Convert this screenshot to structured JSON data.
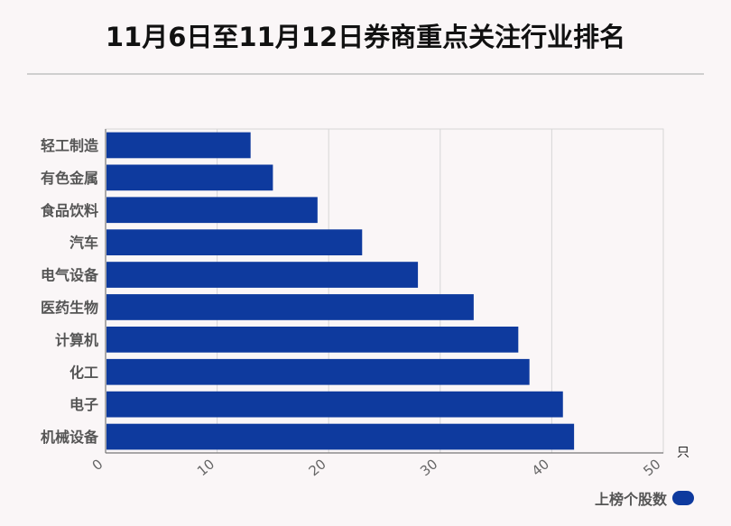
{
  "title": "11月6日至11月12日券商重点关注行业排名",
  "legend": {
    "label": "上榜个股数",
    "color": "#0e3a9e"
  },
  "chart_data": {
    "type": "bar",
    "orientation": "horizontal",
    "title": "11月6日至11月12日券商重点关注行业排名",
    "categories": [
      "轻工制造",
      "有色金属",
      "食品饮料",
      "汽车",
      "电气设备",
      "医药生物",
      "计算机",
      "化工",
      "电子",
      "机械设备"
    ],
    "series": [
      {
        "name": "上榜个股数",
        "values": [
          13,
          15,
          19,
          23,
          28,
          33,
          37,
          38,
          41,
          42
        ],
        "color": "#0e3a9e"
      }
    ],
    "xlim": [
      0,
      50
    ],
    "xticks": [
      "0",
      "10",
      "20",
      "30",
      "40",
      "50"
    ],
    "x_unit": "只",
    "grid": true,
    "legend_position": "bottom-right"
  }
}
